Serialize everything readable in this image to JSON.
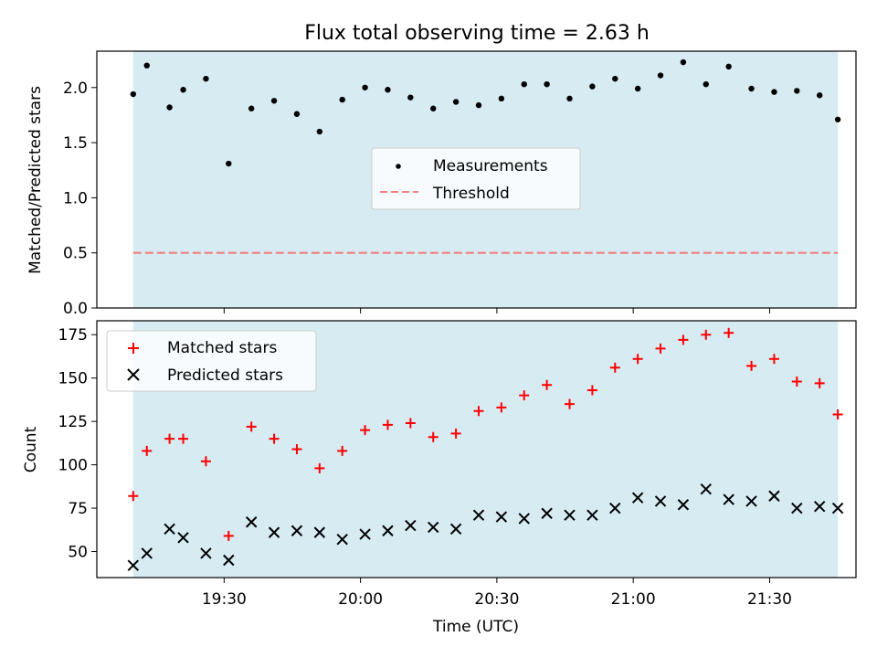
{
  "title": "Flux total observing time = 2.63 h",
  "colors": {
    "band": "#add8e6",
    "measurement": "#000000",
    "threshold": "#f08080",
    "matched": "#ff0000",
    "predicted": "#000000"
  },
  "chart_data": [
    {
      "type": "scatter",
      "panel": "top",
      "xlabel": "",
      "ylabel": "Matched/Predicted stars",
      "ylim": [
        0,
        2.33
      ],
      "yticks": [
        "0.0",
        "0.5",
        "1.0",
        "1.5",
        "2.0"
      ],
      "xlim": [
        "19:02",
        "21:49"
      ],
      "shaded_span": [
        "19:10",
        "21:45"
      ],
      "legend": {
        "placement": "center",
        "entries": [
          "Measurements",
          "Threshold"
        ]
      },
      "threshold": 0.5,
      "x": [
        "19:10",
        "19:13",
        "19:18",
        "19:21",
        "19:26",
        "19:31",
        "19:36",
        "19:41",
        "19:46",
        "19:51",
        "19:56",
        "20:01",
        "20:06",
        "20:11",
        "20:16",
        "20:21",
        "20:26",
        "20:31",
        "20:36",
        "20:41",
        "20:46",
        "20:51",
        "20:56",
        "21:01",
        "21:06",
        "21:11",
        "21:16",
        "21:21",
        "21:26",
        "21:31",
        "21:36",
        "21:41",
        "21:45"
      ],
      "series": [
        {
          "name": "Measurements",
          "values": [
            1.94,
            2.2,
            1.82,
            1.98,
            2.08,
            1.31,
            1.81,
            1.88,
            1.76,
            1.6,
            1.89,
            2.0,
            1.98,
            1.91,
            1.81,
            1.87,
            1.84,
            1.9,
            2.03,
            2.03,
            1.9,
            2.01,
            2.08,
            1.99,
            2.11,
            2.23,
            2.03,
            2.19,
            1.99,
            1.96,
            1.97,
            1.93,
            1.71
          ]
        }
      ]
    },
    {
      "type": "scatter",
      "panel": "bottom",
      "xlabel": "Time (UTC)",
      "ylabel": "Count",
      "ylim": [
        35,
        183
      ],
      "yticks": [
        "50",
        "75",
        "100",
        "125",
        "150",
        "175"
      ],
      "xlim": [
        "19:02",
        "21:49"
      ],
      "xticks": [
        "19:30",
        "20:00",
        "20:30",
        "21:00",
        "21:30"
      ],
      "shaded_span": [
        "19:10",
        "21:45"
      ],
      "legend": {
        "placement": "upper left",
        "entries": [
          "Matched stars",
          "Predicted stars"
        ]
      },
      "x": [
        "19:10",
        "19:13",
        "19:18",
        "19:21",
        "19:26",
        "19:31",
        "19:36",
        "19:41",
        "19:46",
        "19:51",
        "19:56",
        "20:01",
        "20:06",
        "20:11",
        "20:16",
        "20:21",
        "20:26",
        "20:31",
        "20:36",
        "20:41",
        "20:46",
        "20:51",
        "20:56",
        "21:01",
        "21:06",
        "21:11",
        "21:16",
        "21:21",
        "21:26",
        "21:31",
        "21:36",
        "21:41",
        "21:45"
      ],
      "series": [
        {
          "name": "Matched stars",
          "values": [
            82,
            108,
            115,
            115,
            102,
            59,
            122,
            115,
            109,
            98,
            108,
            120,
            123,
            124,
            116,
            118,
            131,
            133,
            140,
            146,
            135,
            143,
            156,
            161,
            167,
            172,
            175,
            176,
            157,
            161,
            148,
            147,
            129
          ]
        },
        {
          "name": "Predicted stars",
          "values": [
            42,
            49,
            63,
            58,
            49,
            45,
            67,
            61,
            62,
            61,
            57,
            60,
            62,
            65,
            64,
            63,
            71,
            70,
            69,
            72,
            71,
            71,
            75,
            81,
            79,
            77,
            86,
            80,
            79,
            82,
            75,
            76,
            75
          ]
        }
      ]
    }
  ]
}
